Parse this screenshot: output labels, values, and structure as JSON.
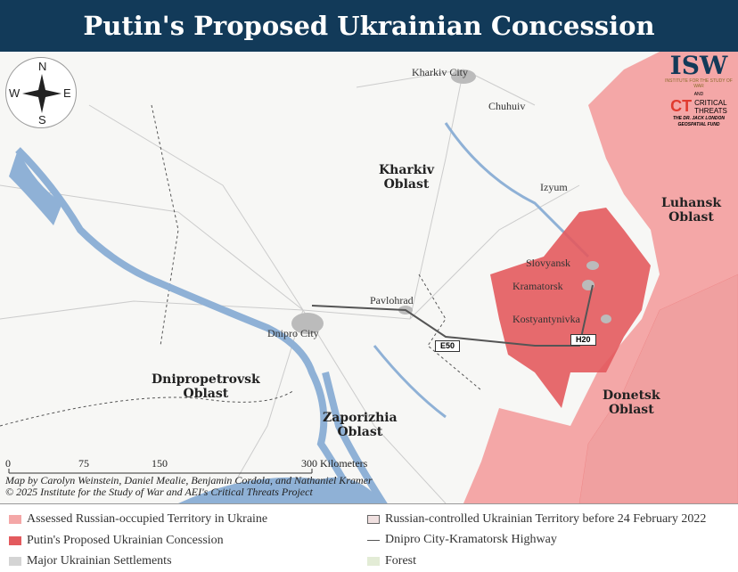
{
  "title": "Putin's Proposed Ukrainian Concession",
  "compass": {
    "n": "N",
    "s": "S",
    "e": "E",
    "w": "W"
  },
  "cities": [
    "Kharkiv City",
    "Chuhuiv",
    "Izyum",
    "Slovyansk",
    "Kramatorsk",
    "Kostyantynivka",
    "Pavlohrad",
    "Dnipro City"
  ],
  "oblasts": {
    "kharkiv": [
      "Kharkiv",
      "Oblast"
    ],
    "luhansk": [
      "Luhansk",
      "Oblast"
    ],
    "donetsk": [
      "Donetsk",
      "Oblast"
    ],
    "dnipro": [
      "Dnipropetrovsk",
      "Oblast"
    ],
    "zaporizhia": [
      "Zaporizhia",
      "Oblast"
    ]
  },
  "roads": {
    "e50": "E50",
    "h20": "H20"
  },
  "scale": {
    "t0": "0",
    "t1": "75",
    "t2": "150",
    "t3": "300 Kilometers"
  },
  "credits": [
    "Map by Carolyn Weinstein, Daniel Mealie, Benjamin Cordola, and Nathaniel Kramer",
    "© 2025 Institute for the Study of War and AEI's Critical Threats Project"
  ],
  "logos": {
    "isw": "ISW",
    "isw_sub": "INSTITUTE FOR THE STUDY OF WAR",
    "and": "AND",
    "ct_mark": "CT",
    "ct": "CRITICAL THREATS",
    "fund": "THE DR. JACK LONDON GEOSPATIAL FUND"
  },
  "legend": [
    {
      "label": "Assessed Russian-occupied Territory in Ukraine",
      "color": "#f4a7a7"
    },
    {
      "label": "Putin's Proposed Ukrainian Concession",
      "color": "#e35a5e"
    },
    {
      "label": "Major Ukrainian Settlements",
      "color": "#d4d4d4"
    },
    {
      "label": "Russian-controlled Ukrainian Territory before 24 February 2022",
      "color": "#f0e0e0"
    },
    {
      "label": "Dnipro City-Kramatorsk Highway",
      "color": "#555555"
    },
    {
      "label": "Forest",
      "color": "#e3ecd6"
    }
  ],
  "colors": {
    "title_bg": "#123a59",
    "water": "#8fb1d6",
    "occupied": "#f4a7a7",
    "concession": "#e35a5e"
  }
}
